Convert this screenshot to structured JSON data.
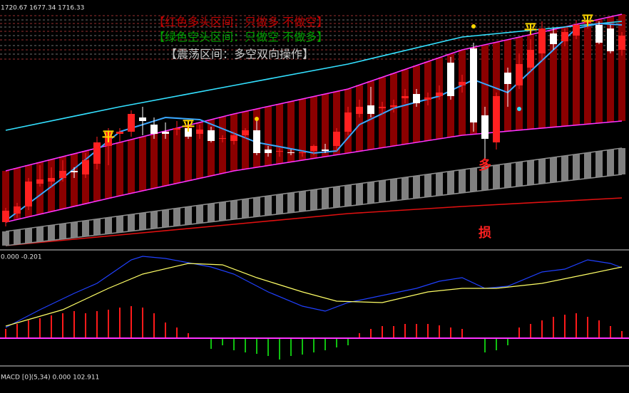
{
  "header": "1720.67 1677.34 1716.33",
  "notes": [
    {
      "text": "【红色多头区间：只做多 不做空】",
      "color": "#c00000"
    },
    {
      "text": "【绿色空头区间：只做空 不做多】",
      "color": "#00a000"
    },
    {
      "text": "【震荡区间：多空双向操作】",
      "color": "#c8c8c8"
    }
  ],
  "chart_data": [
    {
      "type": "candlestick",
      "ylim": [
        1382,
        1730
      ],
      "up_color": "#ff2020",
      "down_color": "#ffffff",
      "open": [
        1418,
        1430,
        1440,
        1472,
        1475,
        1480,
        1490,
        1485,
        1500,
        1525,
        1542,
        1545,
        1565,
        1555,
        1545,
        1548,
        1550,
        1542,
        1547,
        1535,
        1532,
        1540,
        1547,
        1520,
        1517,
        1516,
        1515,
        1518,
        1520,
        1525,
        1545,
        1570,
        1582,
        1578,
        1580,
        1592,
        1598,
        1590,
        1595,
        1642,
        1610,
        1662,
        1568,
        1530,
        1628,
        1610,
        1635,
        1655,
        1683,
        1672,
        1680,
        1698,
        1695,
        1690,
        1660
      ],
      "high": [
        1438,
        1445,
        1480,
        1498,
        1495,
        1505,
        1495,
        1515,
        1538,
        1550,
        1550,
        1575,
        1580,
        1565,
        1558,
        1560,
        1560,
        1555,
        1552,
        1540,
        1545,
        1550,
        1565,
        1525,
        1522,
        1520,
        1518,
        1527,
        1528,
        1550,
        1580,
        1590,
        1608,
        1587,
        1590,
        1605,
        1605,
        1600,
        1610,
        1650,
        1625,
        1670,
        1580,
        1600,
        1635,
        1655,
        1675,
        1700,
        1690,
        1690,
        1702,
        1702,
        1700,
        1695,
        1685
      ],
      "low": [
        1412,
        1424,
        1435,
        1468,
        1468,
        1475,
        1480,
        1480,
        1492,
        1498,
        1530,
        1538,
        1540,
        1535,
        1535,
        1540,
        1535,
        1535,
        1530,
        1530,
        1527,
        1535,
        1512,
        1510,
        1510,
        1512,
        1510,
        1512,
        1515,
        1518,
        1540,
        1565,
        1565,
        1570,
        1572,
        1585,
        1580,
        1582,
        1590,
        1590,
        1600,
        1545,
        1505,
        1520,
        1580,
        1605,
        1630,
        1645,
        1660,
        1665,
        1675,
        1690,
        1668,
        1655,
        1652
      ],
      "close": [
        1434,
        1440,
        1475,
        1478,
        1480,
        1490,
        1488,
        1505,
        1530,
        1545,
        1545,
        1570,
        1560,
        1542,
        1542,
        1550,
        1538,
        1548,
        1532,
        1536,
        1540,
        1547,
        1515,
        1515,
        1518,
        1515,
        1516,
        1525,
        1518,
        1545,
        1572,
        1580,
        1570,
        1580,
        1582,
        1595,
        1585,
        1593,
        1600,
        1595,
        1615,
        1558,
        1535,
        1595,
        1612,
        1640,
        1660,
        1690,
        1668,
        1685,
        1695,
        1700,
        1670,
        1658,
        1680
      ],
      "lines": [
        {
          "color": "#ff33ff",
          "x": [
            0,
            10,
            20,
            30,
            40,
            54
          ],
          "values": [
            1490,
            1530,
            1570,
            1605,
            1660,
            1710
          ]
        },
        {
          "color": "#ff33ff",
          "x": [
            0,
            10,
            20,
            30,
            40,
            54
          ],
          "values": [
            1418,
            1455,
            1490,
            1515,
            1540,
            1560
          ]
        },
        {
          "color": "#33e0ff",
          "x": [
            0,
            10,
            20,
            30,
            40,
            54
          ],
          "values": [
            1547,
            1580,
            1610,
            1640,
            1678,
            1700
          ]
        },
        {
          "color": "#e01010",
          "x": [
            0,
            10,
            20,
            30,
            40,
            54
          ],
          "values": [
            1385,
            1400,
            1415,
            1430,
            1440,
            1452
          ]
        },
        {
          "color": "#8c8c8c",
          "x": [
            0,
            54
          ],
          "values": [
            1405,
            1522
          ]
        },
        {
          "color": "#8c8c8c",
          "x": [
            0,
            54
          ],
          "values": [
            1385,
            1485
          ]
        },
        {
          "color": "#3aa8ff",
          "x": [
            0,
            5,
            10,
            14,
            17,
            22,
            27,
            29,
            31,
            34,
            38,
            41,
            44,
            47,
            50,
            52,
            54
          ],
          "values": [
            1420,
            1480,
            1545,
            1565,
            1562,
            1530,
            1515,
            1518,
            1555,
            1578,
            1595,
            1618,
            1600,
            1645,
            1690,
            1697,
            1695
          ]
        }
      ],
      "annotations": [
        {
          "text": "平",
          "x": 9,
          "y": 1537,
          "color": "#ffd700"
        },
        {
          "text": "平",
          "x": 16,
          "y": 1552,
          "color": "#ffd700"
        },
        {
          "text": "平",
          "x": 46,
          "y": 1688,
          "color": "#ffd700"
        },
        {
          "text": "平",
          "x": 51,
          "y": 1700,
          "color": "#ffd700"
        },
        {
          "text": "多",
          "x": 42,
          "y": 1497,
          "color": "#ff2020"
        },
        {
          "text": "损",
          "x": 42,
          "y": 1402,
          "color": "#ff2020"
        }
      ],
      "signals": [
        {
          "x": 22,
          "y": 1563,
          "color": "#ffd700"
        },
        {
          "x": 41,
          "y": 1693,
          "color": "#ffd700"
        },
        {
          "x": 45,
          "y": 1577,
          "color": "#33e0ff"
        }
      ]
    },
    {
      "type": "macd",
      "title": "0.000 -0.201",
      "ylim": [
        -37,
        123
      ],
      "histogram": [
        13,
        20,
        25,
        28,
        32,
        35,
        38,
        35,
        38,
        40,
        43,
        45,
        43,
        35,
        22,
        15,
        7,
        0,
        -15,
        -10,
        -17,
        -20,
        -22,
        -25,
        -30,
        -25,
        -23,
        -20,
        -17,
        -13,
        -10,
        7,
        13,
        17,
        17,
        20,
        20,
        20,
        18,
        15,
        13,
        0,
        -20,
        -17,
        -10,
        15,
        20,
        25,
        30,
        33,
        35,
        30,
        25,
        17,
        10
      ],
      "pos_color": "#ff1a1a",
      "neg_color": "#10c010",
      "zero_color": "#ff33ff",
      "lines": [
        {
          "color": "#2040ff",
          "x": [
            0,
            3,
            6,
            8,
            11,
            12,
            14,
            18,
            20,
            23,
            26,
            28,
            30,
            33,
            36,
            38,
            40,
            42,
            44,
            47,
            49,
            51,
            53,
            54
          ],
          "values": [
            15,
            40,
            63,
            77,
            110,
            115,
            112,
            100,
            90,
            65,
            45,
            38,
            50,
            60,
            70,
            80,
            85,
            70,
            73,
            93,
            97,
            110,
            105,
            99
          ]
        },
        {
          "color": "#ffff66",
          "x": [
            0,
            5,
            9,
            12,
            16,
            19,
            22,
            26,
            29,
            33,
            37,
            40,
            43,
            47,
            51,
            54
          ],
          "values": [
            17,
            40,
            70,
            90,
            105,
            103,
            85,
            65,
            52,
            50,
            65,
            70,
            70,
            77,
            90,
            100
          ]
        }
      ]
    },
    {
      "type": "oscillator",
      "title": "MACD [0](5,34) 0.000 102.911"
    }
  ]
}
